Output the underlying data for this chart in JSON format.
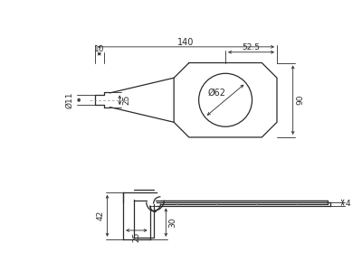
{
  "bg_color": "#ffffff",
  "line_color": "#2a2a2a",
  "dim_color": "#2a2a2a",
  "lw": 0.9,
  "dlw": 0.6,
  "annotations": {
    "dim_10": "10",
    "dim_140": "140",
    "dim_52_5": "52.5",
    "dim_phi11": "Ø11",
    "dim_phi62": "Ø62",
    "dim_25_top": "25",
    "dim_90": "90",
    "dim_42": "42",
    "dim_30": "30",
    "dim_25_bot": "25",
    "dim_4": "4"
  }
}
